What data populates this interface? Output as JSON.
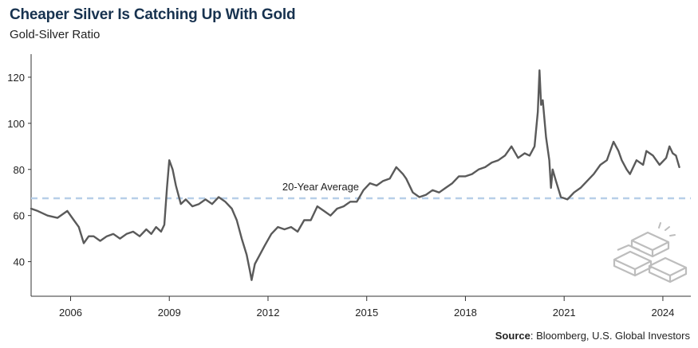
{
  "title": "Cheaper Silver Is Catching Up With Gold",
  "subtitle": "Gold-Silver Ratio",
  "source_label": "Source",
  "source_text": ": Bloomberg, U.S. Global Investors",
  "icon": "gold-silver-bars-icon",
  "colors": {
    "line": "#5a5a5a",
    "average": "#b7cfe8",
    "title": "#17324f",
    "axis": "#333333"
  },
  "chart_data": {
    "type": "line",
    "title": "Cheaper Silver Is Catching Up With Gold",
    "subtitle": "Gold-Silver Ratio",
    "xlabel": "",
    "ylabel": "",
    "xlim": [
      2004.8,
      2024.85
    ],
    "ylim": [
      25,
      130
    ],
    "x_ticks": [
      "2006",
      "2009",
      "2012",
      "2015",
      "2018",
      "2021",
      "2024"
    ],
    "y_ticks": [
      "40",
      "60",
      "80",
      "100",
      "120"
    ],
    "grid": false,
    "average": {
      "label": "20-Year Average",
      "value": 67.5
    },
    "series": [
      {
        "x": [
          2004.8,
          2005.0,
          2005.3,
          2005.6,
          2005.9,
          2006.1,
          2006.25,
          2006.4,
          2006.55,
          2006.7,
          2006.9,
          2007.1,
          2007.3,
          2007.5,
          2007.7,
          2007.9,
          2008.1,
          2008.3,
          2008.45,
          2008.6,
          2008.75,
          2008.85,
          2008.93,
          2009.0,
          2009.1,
          2009.2,
          2009.35,
          2009.5,
          2009.7,
          2009.9,
          2010.1,
          2010.3,
          2010.5,
          2010.7,
          2010.9,
          2011.05,
          2011.2,
          2011.35,
          2011.45,
          2011.5,
          2011.6,
          2011.75,
          2011.9,
          2012.1,
          2012.3,
          2012.5,
          2012.7,
          2012.9,
          2013.1,
          2013.3,
          2013.5,
          2013.7,
          2013.9,
          2014.1,
          2014.3,
          2014.5,
          2014.7,
          2014.9,
          2015.1,
          2015.3,
          2015.5,
          2015.7,
          2015.9,
          2016.1,
          2016.2,
          2016.4,
          2016.6,
          2016.8,
          2017.0,
          2017.2,
          2017.4,
          2017.6,
          2017.8,
          2018.0,
          2018.2,
          2018.4,
          2018.6,
          2018.8,
          2019.0,
          2019.2,
          2019.4,
          2019.6,
          2019.8,
          2019.95,
          2020.1,
          2020.2,
          2020.25,
          2020.3,
          2020.35,
          2020.45,
          2020.55,
          2020.6,
          2020.65,
          2020.75,
          2020.9,
          2021.1,
          2021.3,
          2021.5,
          2021.7,
          2021.9,
          2022.1,
          2022.3,
          2022.5,
          2022.65,
          2022.75,
          2022.9,
          2023.0,
          2023.2,
          2023.4,
          2023.5,
          2023.7,
          2023.9,
          2024.1,
          2024.2,
          2024.3,
          2024.4,
          2024.5
        ],
        "y": [
          63,
          62,
          60,
          59,
          62,
          58,
          55,
          48,
          51,
          51,
          49,
          51,
          52,
          50,
          52,
          53,
          51,
          54,
          52,
          55,
          53,
          56,
          72,
          84,
          80,
          73,
          65,
          67,
          64,
          65,
          67,
          65,
          68,
          66,
          63,
          58,
          50,
          43,
          36,
          32,
          39,
          43,
          47,
          52,
          55,
          54,
          55,
          53,
          58,
          58,
          64,
          62,
          60,
          63,
          64,
          66,
          66,
          71,
          74,
          73,
          75,
          76,
          81,
          78,
          76,
          70,
          68,
          69,
          71,
          70,
          72,
          74,
          77,
          77,
          78,
          80,
          81,
          83,
          84,
          86,
          90,
          85,
          87,
          86,
          90,
          105,
          123,
          108,
          110,
          94,
          84,
          72,
          80,
          75,
          68,
          67,
          70,
          72,
          75,
          78,
          82,
          84,
          92,
          88,
          84,
          80,
          78,
          84,
          82,
          88,
          86,
          82,
          85,
          90,
          87,
          86,
          81
        ]
      }
    ]
  }
}
